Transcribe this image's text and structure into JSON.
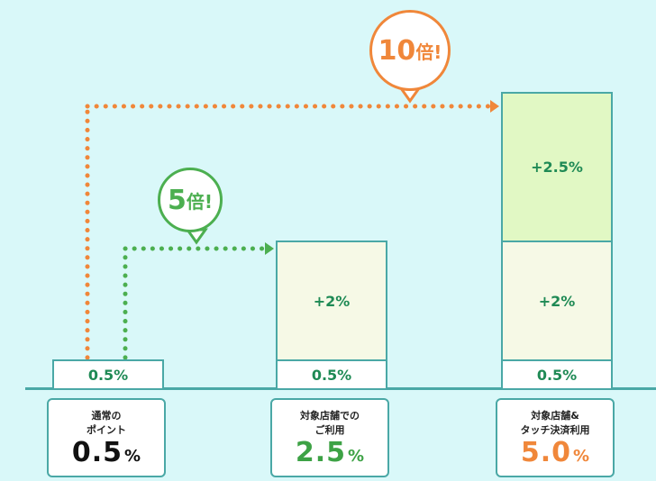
{
  "chart_data": {
    "type": "bar",
    "stacked": true,
    "categories": [
      "通常の\nポイント",
      "対象店舗での\nご利用",
      "対象店舗&\nタッチ決済利用"
    ],
    "totals": [
      "0.5",
      "2.5",
      "5.0"
    ],
    "total_unit": "%",
    "series": [
      {
        "values": [
          0.5,
          0.5,
          0.5
        ],
        "labels": [
          "0.5%",
          "0.5%",
          "0.5%"
        ],
        "color": "#ffffff"
      },
      {
        "values": [
          0,
          2,
          2
        ],
        "labels": [
          "",
          "+2%",
          "+2%"
        ],
        "color": "#f6f9e6"
      },
      {
        "values": [
          0,
          0,
          2.5
        ],
        "labels": [
          "",
          "",
          "+2.5%"
        ],
        "color": "#e1f8c4"
      }
    ],
    "callouts": [
      {
        "number": "5",
        "suffix": "倍!",
        "from": 0,
        "to": 1,
        "color": "#4caf50"
      },
      {
        "number": "10",
        "suffix": "倍!",
        "from": 0,
        "to": 2,
        "color": "#f0873a"
      }
    ],
    "total_colors": [
      "#111111",
      "#3da245",
      "#f0873a"
    ],
    "colors": {
      "background": "#d9f8f9",
      "border": "#4aa8a6",
      "segment_text": "#1f8a55"
    }
  }
}
